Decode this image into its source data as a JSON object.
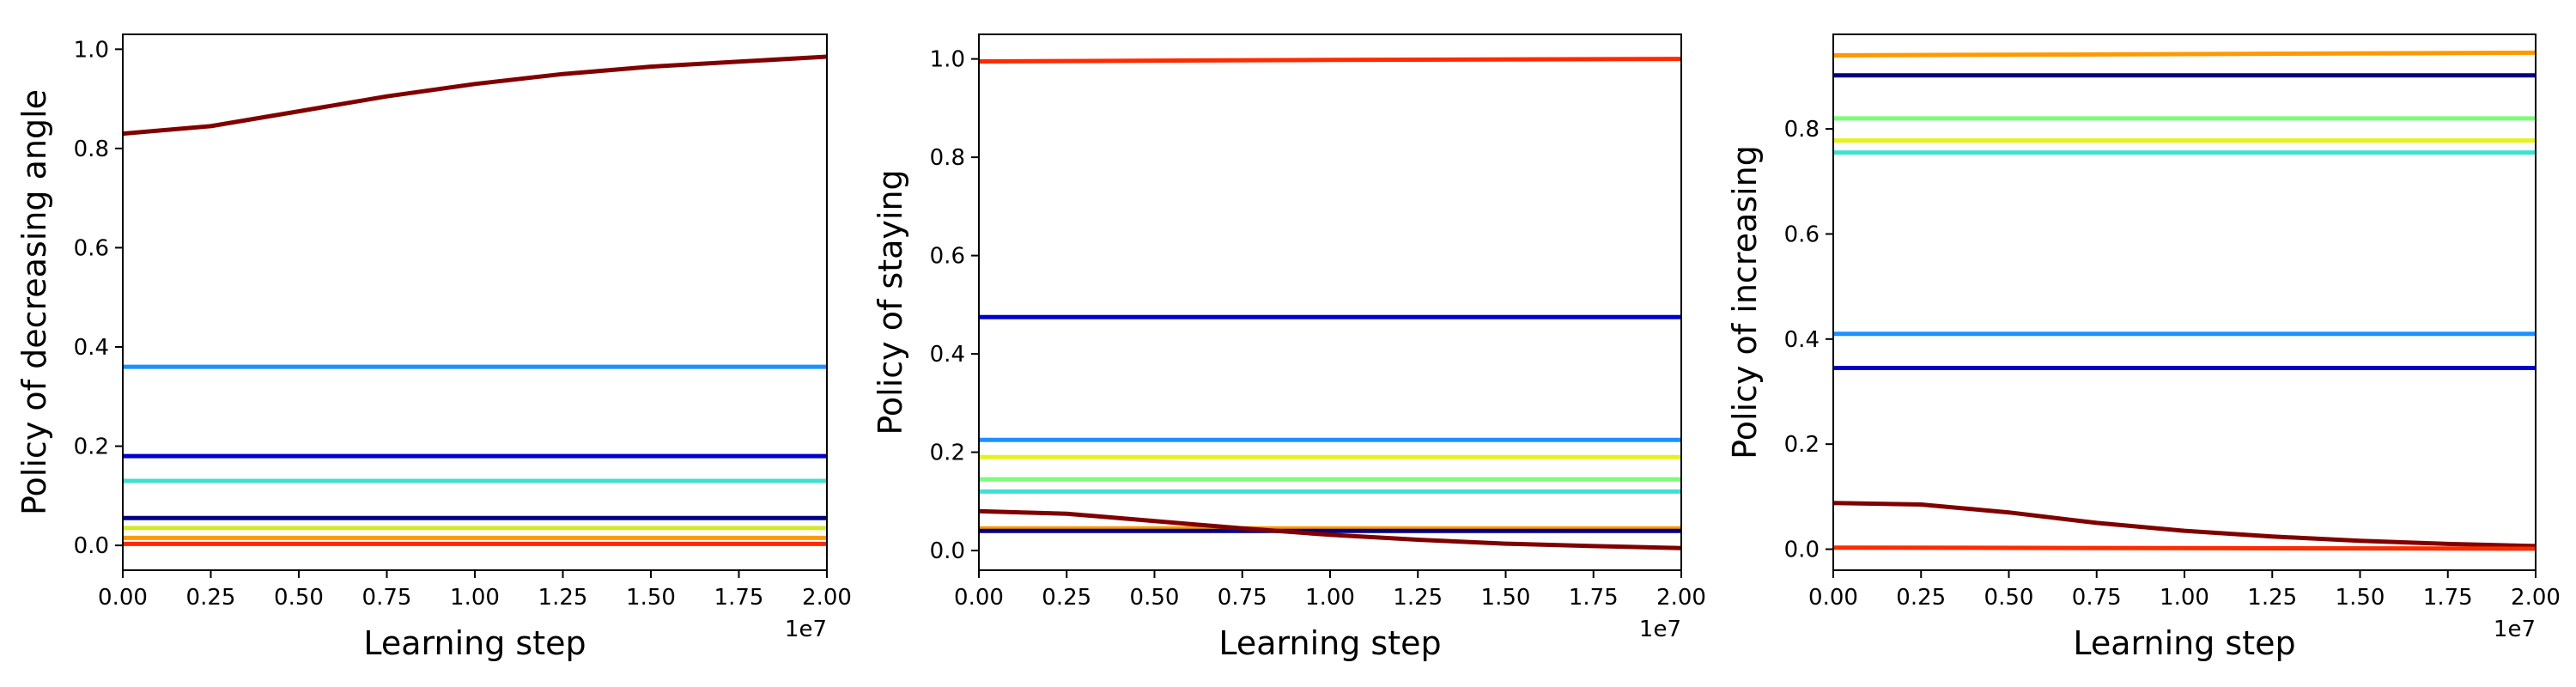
{
  "chart_data": [
    {
      "type": "line",
      "ylabel": "Policy of decreasing angle",
      "xlabel": "Learning step",
      "x_offset_label": "1e7",
      "xlim": [
        0,
        2
      ],
      "ylim": [
        -0.05,
        1.03
      ],
      "xticks": [
        "0.00",
        "0.25",
        "0.50",
        "0.75",
        "1.00",
        "1.25",
        "1.50",
        "1.75",
        "2.00"
      ],
      "yticks": [
        "0.0",
        "0.2",
        "0.4",
        "0.6",
        "0.8",
        "1.0"
      ],
      "grid": false,
      "series": [
        {
          "color": "#800000",
          "x": [
            0,
            0.25,
            0.5,
            0.75,
            1.0,
            1.25,
            1.5,
            1.75,
            2.0
          ],
          "values": [
            0.83,
            0.845,
            0.875,
            0.905,
            0.93,
            0.95,
            0.965,
            0.975,
            0.985
          ]
        },
        {
          "color": "#1e90ff",
          "x": [
            0,
            2
          ],
          "values": [
            0.36,
            0.36
          ]
        },
        {
          "color": "#0000cd",
          "x": [
            0,
            2
          ],
          "values": [
            0.18,
            0.18
          ]
        },
        {
          "color": "#40e0d0",
          "x": [
            0,
            2
          ],
          "values": [
            0.13,
            0.13
          ]
        },
        {
          "color": "#000080",
          "x": [
            0,
            2
          ],
          "values": [
            0.055,
            0.055
          ]
        },
        {
          "color": "#d4e829",
          "x": [
            0,
            2
          ],
          "values": [
            0.035,
            0.035
          ]
        },
        {
          "color": "#ff9900",
          "x": [
            0,
            2
          ],
          "values": [
            0.015,
            0.015
          ]
        },
        {
          "color": "#ff2a00",
          "x": [
            0,
            2
          ],
          "values": [
            0.003,
            0.003
          ]
        }
      ]
    },
    {
      "type": "line",
      "ylabel": "Policy of staying",
      "xlabel": "Learning step",
      "x_offset_label": "1e7",
      "xlim": [
        0,
        2
      ],
      "ylim": [
        -0.04,
        1.05
      ],
      "xticks": [
        "0.00",
        "0.25",
        "0.50",
        "0.75",
        "1.00",
        "1.25",
        "1.50",
        "1.75",
        "2.00"
      ],
      "yticks": [
        "0.0",
        "0.2",
        "0.4",
        "0.6",
        "0.8",
        "1.0"
      ],
      "grid": false,
      "series": [
        {
          "color": "#ff2a00",
          "x": [
            0,
            1,
            2
          ],
          "values": [
            0.995,
            0.998,
            1.0
          ]
        },
        {
          "color": "#0000cd",
          "x": [
            0,
            2
          ],
          "values": [
            0.475,
            0.475
          ]
        },
        {
          "color": "#1e90ff",
          "x": [
            0,
            2
          ],
          "values": [
            0.225,
            0.225
          ]
        },
        {
          "color": "#e5f21f",
          "x": [
            0,
            2
          ],
          "values": [
            0.19,
            0.19
          ]
        },
        {
          "color": "#7cfc7c",
          "x": [
            0,
            2
          ],
          "values": [
            0.145,
            0.145
          ]
        },
        {
          "color": "#40e0d0",
          "x": [
            0,
            2
          ],
          "values": [
            0.12,
            0.12
          ]
        },
        {
          "color": "#ff9900",
          "x": [
            0,
            2
          ],
          "values": [
            0.045,
            0.045
          ]
        },
        {
          "color": "#000080",
          "x": [
            0,
            2
          ],
          "values": [
            0.04,
            0.04
          ]
        },
        {
          "color": "#800000",
          "x": [
            0,
            0.25,
            0.5,
            0.75,
            1.0,
            1.25,
            1.5,
            1.75,
            2.0
          ],
          "values": [
            0.08,
            0.075,
            0.06,
            0.045,
            0.032,
            0.022,
            0.014,
            0.009,
            0.005
          ]
        }
      ]
    },
    {
      "type": "line",
      "ylabel": "Policy of increasing",
      "xlabel": "Learning step",
      "x_offset_label": "1e7",
      "xlim": [
        0,
        2
      ],
      "ylim": [
        -0.04,
        0.98
      ],
      "xticks": [
        "0.00",
        "0.25",
        "0.50",
        "0.75",
        "1.00",
        "1.25",
        "1.50",
        "1.75",
        "2.00"
      ],
      "yticks": [
        "0.0",
        "0.2",
        "0.4",
        "0.6",
        "0.8"
      ],
      "grid": false,
      "series": [
        {
          "color": "#ff9900",
          "x": [
            0,
            2
          ],
          "values": [
            0.94,
            0.945
          ]
        },
        {
          "color": "#000080",
          "x": [
            0,
            2
          ],
          "values": [
            0.902,
            0.902
          ]
        },
        {
          "color": "#7cfc7c",
          "x": [
            0,
            2
          ],
          "values": [
            0.82,
            0.82
          ]
        },
        {
          "color": "#e5f21f",
          "x": [
            0,
            2
          ],
          "values": [
            0.778,
            0.778
          ]
        },
        {
          "color": "#40e0d0",
          "x": [
            0,
            2
          ],
          "values": [
            0.755,
            0.755
          ]
        },
        {
          "color": "#1e90ff",
          "x": [
            0,
            2
          ],
          "values": [
            0.41,
            0.41
          ]
        },
        {
          "color": "#0000cd",
          "x": [
            0,
            2
          ],
          "values": [
            0.345,
            0.345
          ]
        },
        {
          "color": "#800000",
          "x": [
            0,
            0.25,
            0.5,
            0.75,
            1.0,
            1.25,
            1.5,
            1.75,
            2.0
          ],
          "values": [
            0.088,
            0.085,
            0.07,
            0.05,
            0.035,
            0.024,
            0.016,
            0.01,
            0.006
          ]
        },
        {
          "color": "#ff2a00",
          "x": [
            0,
            2
          ],
          "values": [
            0.003,
            0.001
          ]
        }
      ]
    }
  ]
}
